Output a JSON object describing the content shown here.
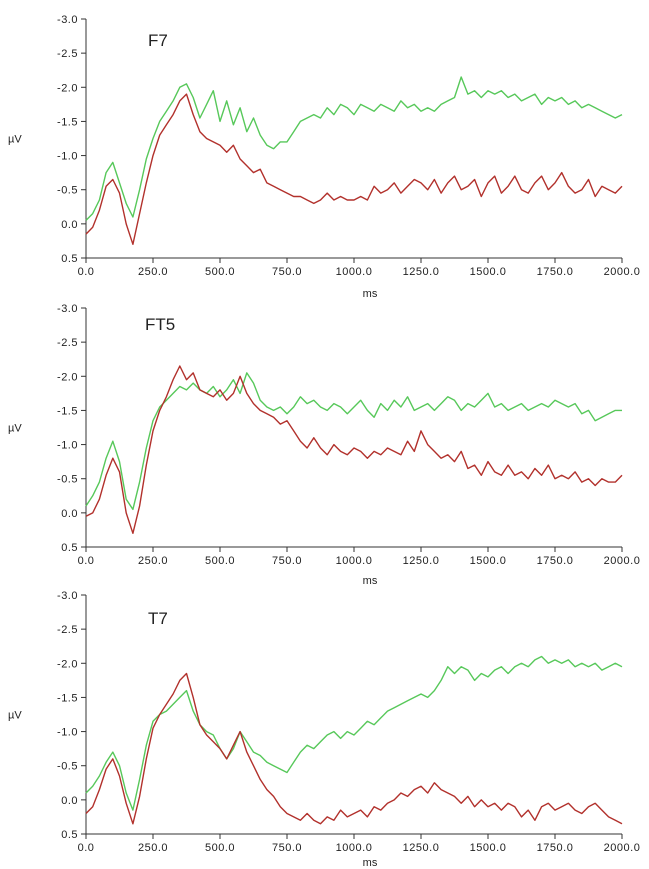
{
  "chart_data": [
    {
      "type": "line",
      "title": "F7",
      "xlabel": "ms",
      "ylabel": "µV",
      "xlim": [
        0,
        2000
      ],
      "ylim": [
        0.5,
        -3.0
      ],
      "y_inverted": true,
      "grid": false,
      "x_ticks": [
        "0.0",
        "250.0",
        "500.0",
        "750.0",
        "1000.0",
        "1250.0",
        "1500.0",
        "1750.0",
        "2000.0"
      ],
      "y_ticks": [
        "-3.0",
        "-2.5",
        "-2.0",
        "-1.5",
        "-1.0",
        "-0.5",
        "0.0",
        "0.5"
      ],
      "x": [
        0,
        25,
        50,
        75,
        100,
        125,
        150,
        175,
        200,
        225,
        250,
        275,
        300,
        325,
        350,
        375,
        400,
        425,
        450,
        475,
        500,
        525,
        550,
        575,
        600,
        625,
        650,
        675,
        700,
        725,
        750,
        775,
        800,
        825,
        850,
        875,
        900,
        925,
        950,
        975,
        1000,
        1025,
        1050,
        1075,
        1100,
        1125,
        1150,
        1175,
        1200,
        1225,
        1250,
        1275,
        1300,
        1325,
        1350,
        1375,
        1400,
        1425,
        1450,
        1475,
        1500,
        1525,
        1550,
        1575,
        1600,
        1625,
        1650,
        1675,
        1700,
        1725,
        1750,
        1775,
        1800,
        1825,
        1850,
        1875,
        1900,
        1925,
        1950,
        1975,
        2000
      ],
      "series": [
        {
          "color": "#57c85a",
          "values": [
            -0.05,
            -0.15,
            -0.35,
            -0.75,
            -0.9,
            -0.6,
            -0.3,
            -0.1,
            -0.5,
            -0.95,
            -1.25,
            -1.5,
            -1.65,
            -1.8,
            -2.0,
            -2.05,
            -1.85,
            -1.55,
            -1.75,
            -1.95,
            -1.5,
            -1.8,
            -1.45,
            -1.7,
            -1.35,
            -1.55,
            -1.3,
            -1.15,
            -1.1,
            -1.2,
            -1.2,
            -1.35,
            -1.5,
            -1.55,
            -1.6,
            -1.55,
            -1.7,
            -1.6,
            -1.75,
            -1.7,
            -1.6,
            -1.75,
            -1.7,
            -1.65,
            -1.75,
            -1.7,
            -1.65,
            -1.8,
            -1.7,
            -1.75,
            -1.65,
            -1.7,
            -1.65,
            -1.75,
            -1.8,
            -1.85,
            -2.15,
            -1.9,
            -1.95,
            -1.85,
            -1.95,
            -1.9,
            -1.95,
            -1.85,
            -1.9,
            -1.8,
            -1.85,
            -1.9,
            -1.75,
            -1.85,
            -1.8,
            -1.85,
            -1.75,
            -1.8,
            -1.7,
            -1.75,
            -1.7,
            -1.65,
            -1.6,
            -1.55,
            -1.6
          ]
        },
        {
          "color": "#b2312c",
          "values": [
            0.15,
            0.05,
            -0.2,
            -0.55,
            -0.65,
            -0.45,
            0.0,
            0.3,
            -0.15,
            -0.6,
            -1.0,
            -1.3,
            -1.45,
            -1.6,
            -1.8,
            -1.9,
            -1.6,
            -1.35,
            -1.25,
            -1.2,
            -1.15,
            -1.05,
            -1.15,
            -0.95,
            -0.85,
            -0.75,
            -0.8,
            -0.6,
            -0.55,
            -0.5,
            -0.45,
            -0.4,
            -0.4,
            -0.35,
            -0.3,
            -0.35,
            -0.45,
            -0.35,
            -0.4,
            -0.35,
            -0.35,
            -0.4,
            -0.35,
            -0.55,
            -0.45,
            -0.5,
            -0.6,
            -0.45,
            -0.55,
            -0.65,
            -0.6,
            -0.5,
            -0.65,
            -0.45,
            -0.6,
            -0.7,
            -0.5,
            -0.55,
            -0.65,
            -0.4,
            -0.6,
            -0.7,
            -0.45,
            -0.55,
            -0.7,
            -0.5,
            -0.45,
            -0.6,
            -0.7,
            -0.5,
            -0.6,
            -0.75,
            -0.55,
            -0.45,
            -0.5,
            -0.65,
            -0.4,
            -0.55,
            -0.5,
            -0.45,
            -0.55
          ]
        }
      ]
    },
    {
      "type": "line",
      "title": "FT5",
      "xlabel": "ms",
      "ylabel": "µV",
      "xlim": [
        0,
        2000
      ],
      "ylim": [
        0.5,
        -3.0
      ],
      "y_inverted": true,
      "grid": false,
      "x_ticks": [
        "0.0",
        "250.0",
        "500.0",
        "750.0",
        "1000.0",
        "1250.0",
        "1500.0",
        "1750.0",
        "2000.0"
      ],
      "y_ticks": [
        "-3.0",
        "-2.5",
        "-2.0",
        "-1.5",
        "-1.0",
        "-0.5",
        "0.0",
        "0.5"
      ],
      "x": [
        0,
        25,
        50,
        75,
        100,
        125,
        150,
        175,
        200,
        225,
        250,
        275,
        300,
        325,
        350,
        375,
        400,
        425,
        450,
        475,
        500,
        525,
        550,
        575,
        600,
        625,
        650,
        675,
        700,
        725,
        750,
        775,
        800,
        825,
        850,
        875,
        900,
        925,
        950,
        975,
        1000,
        1025,
        1050,
        1075,
        1100,
        1125,
        1150,
        1175,
        1200,
        1225,
        1250,
        1275,
        1300,
        1325,
        1350,
        1375,
        1400,
        1425,
        1450,
        1475,
        1500,
        1525,
        1550,
        1575,
        1600,
        1625,
        1650,
        1675,
        1700,
        1725,
        1750,
        1775,
        1800,
        1825,
        1850,
        1875,
        1900,
        1925,
        1950,
        1975,
        2000
      ],
      "series": [
        {
          "color": "#57c85a",
          "values": [
            -0.1,
            -0.25,
            -0.45,
            -0.8,
            -1.05,
            -0.75,
            -0.2,
            -0.05,
            -0.45,
            -0.95,
            -1.35,
            -1.55,
            -1.65,
            -1.75,
            -1.85,
            -1.8,
            -1.9,
            -1.8,
            -1.75,
            -1.85,
            -1.7,
            -1.8,
            -1.95,
            -1.75,
            -2.05,
            -1.9,
            -1.65,
            -1.55,
            -1.5,
            -1.55,
            -1.45,
            -1.55,
            -1.7,
            -1.6,
            -1.65,
            -1.55,
            -1.5,
            -1.6,
            -1.55,
            -1.45,
            -1.55,
            -1.65,
            -1.5,
            -1.4,
            -1.6,
            -1.5,
            -1.65,
            -1.55,
            -1.7,
            -1.5,
            -1.55,
            -1.6,
            -1.5,
            -1.6,
            -1.7,
            -1.65,
            -1.5,
            -1.6,
            -1.55,
            -1.65,
            -1.75,
            -1.55,
            -1.6,
            -1.5,
            -1.55,
            -1.6,
            -1.5,
            -1.55,
            -1.6,
            -1.55,
            -1.65,
            -1.6,
            -1.55,
            -1.6,
            -1.45,
            -1.5,
            -1.35,
            -1.4,
            -1.45,
            -1.5,
            -1.5
          ]
        },
        {
          "color": "#b2312c",
          "values": [
            0.05,
            0.0,
            -0.2,
            -0.55,
            -0.8,
            -0.6,
            0.0,
            0.3,
            -0.1,
            -0.7,
            -1.2,
            -1.5,
            -1.7,
            -1.95,
            -2.15,
            -1.95,
            -2.05,
            -1.8,
            -1.75,
            -1.7,
            -1.8,
            -1.65,
            -1.75,
            -2.0,
            -1.75,
            -1.6,
            -1.5,
            -1.45,
            -1.4,
            -1.3,
            -1.35,
            -1.2,
            -1.05,
            -0.95,
            -1.1,
            -0.95,
            -0.85,
            -1.0,
            -0.9,
            -0.85,
            -0.95,
            -0.9,
            -0.8,
            -0.9,
            -0.85,
            -0.95,
            -0.9,
            -0.85,
            -1.05,
            -0.9,
            -1.2,
            -1.0,
            -0.9,
            -0.8,
            -0.85,
            -0.75,
            -0.9,
            -0.65,
            -0.7,
            -0.55,
            -0.75,
            -0.6,
            -0.55,
            -0.7,
            -0.55,
            -0.6,
            -0.5,
            -0.65,
            -0.55,
            -0.7,
            -0.5,
            -0.55,
            -0.5,
            -0.6,
            -0.45,
            -0.5,
            -0.4,
            -0.5,
            -0.45,
            -0.45,
            -0.55
          ]
        }
      ]
    },
    {
      "type": "line",
      "title": "T7",
      "xlabel": "ms",
      "ylabel": "µV",
      "xlim": [
        0,
        2000
      ],
      "ylim": [
        0.5,
        -3.0
      ],
      "y_inverted": true,
      "grid": false,
      "x_ticks": [
        "0.0",
        "250.0",
        "500.0",
        "750.0",
        "1000.0",
        "1250.0",
        "1500.0",
        "1750.0",
        "2000.0"
      ],
      "y_ticks": [
        "-3.0",
        "-2.5",
        "-2.0",
        "-1.5",
        "-1.0",
        "-0.5",
        "0.0",
        "0.5"
      ],
      "x": [
        0,
        25,
        50,
        75,
        100,
        125,
        150,
        175,
        200,
        225,
        250,
        275,
        300,
        325,
        350,
        375,
        400,
        425,
        450,
        475,
        500,
        525,
        550,
        575,
        600,
        625,
        650,
        675,
        700,
        725,
        750,
        775,
        800,
        825,
        850,
        875,
        900,
        925,
        950,
        975,
        1000,
        1025,
        1050,
        1075,
        1100,
        1125,
        1150,
        1175,
        1200,
        1225,
        1250,
        1275,
        1300,
        1325,
        1350,
        1375,
        1400,
        1425,
        1450,
        1475,
        1500,
        1525,
        1550,
        1575,
        1600,
        1625,
        1650,
        1675,
        1700,
        1725,
        1750,
        1775,
        1800,
        1825,
        1850,
        1875,
        1900,
        1925,
        1950,
        1975,
        2000
      ],
      "series": [
        {
          "color": "#57c85a",
          "values": [
            -0.1,
            -0.2,
            -0.35,
            -0.55,
            -0.7,
            -0.5,
            -0.1,
            0.15,
            -0.3,
            -0.8,
            -1.15,
            -1.25,
            -1.3,
            -1.4,
            -1.5,
            -1.6,
            -1.3,
            -1.1,
            -1.0,
            -0.95,
            -0.75,
            -0.6,
            -0.75,
            -1.0,
            -0.85,
            -0.7,
            -0.65,
            -0.55,
            -0.5,
            -0.45,
            -0.4,
            -0.55,
            -0.7,
            -0.8,
            -0.75,
            -0.85,
            -0.95,
            -1.0,
            -0.9,
            -1.0,
            -0.95,
            -1.05,
            -1.15,
            -1.1,
            -1.2,
            -1.3,
            -1.35,
            -1.4,
            -1.45,
            -1.5,
            -1.55,
            -1.5,
            -1.6,
            -1.75,
            -1.95,
            -1.85,
            -1.95,
            -1.9,
            -1.75,
            -1.85,
            -1.8,
            -1.9,
            -1.95,
            -1.85,
            -1.95,
            -2.0,
            -1.95,
            -2.05,
            -2.1,
            -2.0,
            -2.05,
            -2.0,
            -2.05,
            -1.95,
            -2.0,
            -1.95,
            -2.0,
            -1.9,
            -1.95,
            -2.0,
            -1.95
          ]
        },
        {
          "color": "#b2312c",
          "values": [
            0.2,
            0.1,
            -0.15,
            -0.45,
            -0.6,
            -0.35,
            0.05,
            0.35,
            -0.05,
            -0.6,
            -1.05,
            -1.25,
            -1.4,
            -1.55,
            -1.75,
            -1.85,
            -1.5,
            -1.1,
            -0.95,
            -0.85,
            -0.75,
            -0.6,
            -0.8,
            -1.0,
            -0.7,
            -0.5,
            -0.3,
            -0.15,
            -0.05,
            0.1,
            0.2,
            0.25,
            0.3,
            0.2,
            0.3,
            0.35,
            0.25,
            0.3,
            0.15,
            0.25,
            0.2,
            0.15,
            0.25,
            0.1,
            0.15,
            0.05,
            0.0,
            -0.1,
            -0.05,
            -0.15,
            -0.2,
            -0.1,
            -0.25,
            -0.15,
            -0.1,
            -0.05,
            0.05,
            -0.05,
            0.1,
            0.0,
            0.1,
            0.05,
            0.15,
            0.05,
            0.1,
            0.25,
            0.15,
            0.3,
            0.1,
            0.05,
            0.15,
            0.1,
            0.05,
            0.15,
            0.2,
            0.1,
            0.05,
            0.15,
            0.25,
            0.3,
            0.35
          ]
        }
      ]
    }
  ]
}
